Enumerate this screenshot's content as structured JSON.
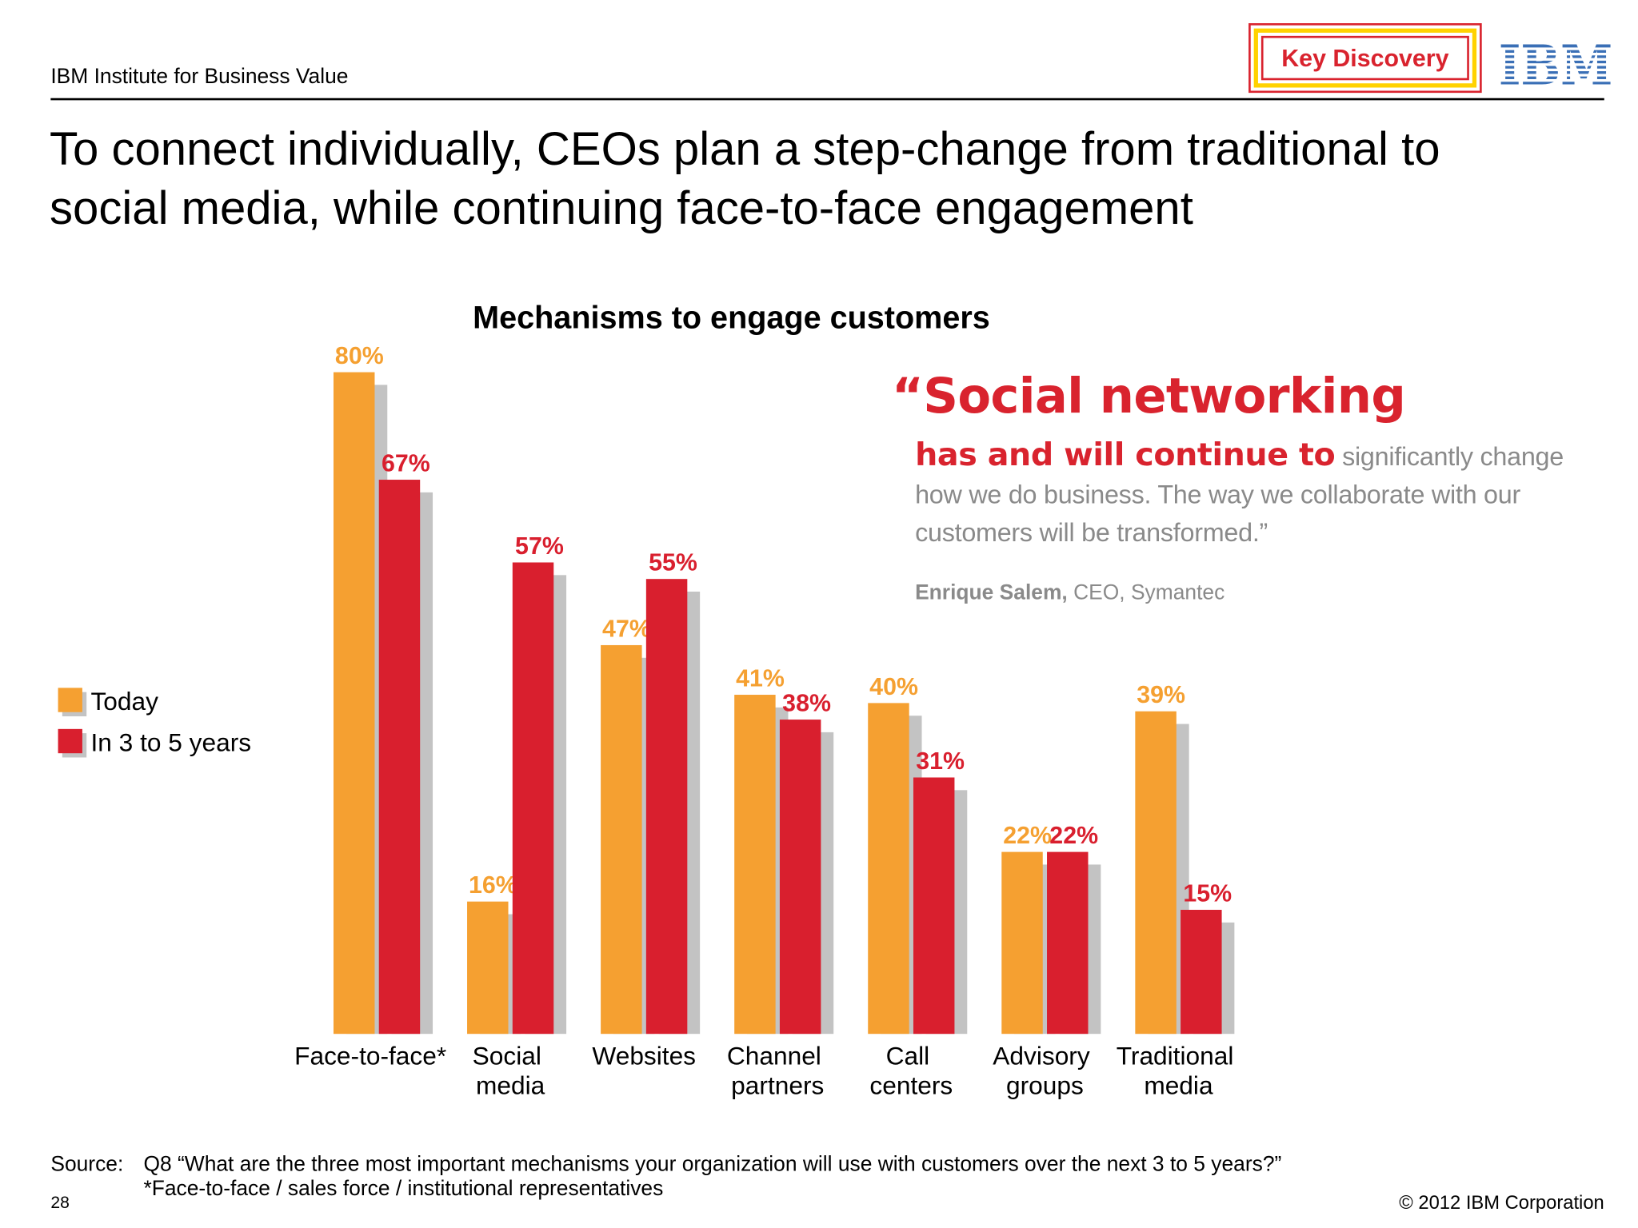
{
  "header": {
    "institute": "IBM Institute for Business Value",
    "badge": "Key Discovery",
    "logo": "IBM",
    "title_line1": "To connect individually, CEOs plan a step-change from traditional to",
    "title_line2": "social media, while continuing face-to-face engagement"
  },
  "chart_data": {
    "type": "bar",
    "title": "Mechanisms to engage customers",
    "categories": [
      "Face-to-face*",
      "Social media",
      "Websites",
      "Channel partners",
      "Call centers",
      "Advisory groups",
      "Traditional media"
    ],
    "series": [
      {
        "name": "Today",
        "color": "#f5a031",
        "values": [
          80,
          16,
          47,
          41,
          40,
          22,
          39
        ],
        "value_labels": [
          "80%",
          "16%",
          "47%",
          "41%",
          "40%",
          "22%",
          "39%"
        ]
      },
      {
        "name": "In 3 to 5 years",
        "color": "#d91f2e",
        "values": [
          67,
          57,
          55,
          38,
          31,
          22,
          15
        ],
        "value_labels": [
          "67%",
          "57%",
          "55%",
          "38%",
          "31%",
          "22%",
          "15%"
        ]
      }
    ],
    "legend": "left"
  },
  "quote": {
    "opening": "“Social networking",
    "lead": "has and will continue to",
    "rest": "significantly change how we do business. The way we collaborate with our customers will be transformed.”",
    "author": "Enrique Salem,",
    "role": "CEO, Symantec"
  },
  "footer": {
    "source_label": "Source:",
    "source_text": "Q8 “What are the three most important mechanisms your organization will use with customers over the next 3 to 5 years?”",
    "footnote": "*Face-to-face / sales force / institutional representatives",
    "page": "28",
    "copyright": "© 2012 IBM Corporation"
  }
}
